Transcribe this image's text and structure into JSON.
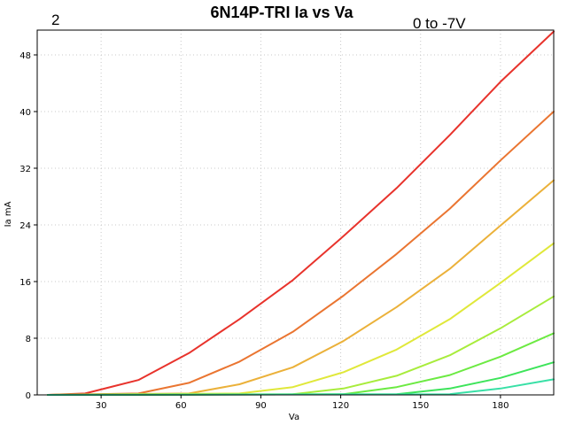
{
  "header": {
    "left_number": "2",
    "bias_range": "0 to -7V"
  },
  "chart_data": {
    "type": "line",
    "title": "6N14P-TRI Ia vs Va",
    "xlabel": "Va",
    "ylabel": "Ia mA",
    "xlim": [
      6,
      200
    ],
    "ylim": [
      0,
      51.5
    ],
    "xticks": [
      30,
      60,
      90,
      120,
      150,
      180
    ],
    "yticks": [
      0,
      8,
      16,
      24,
      32,
      40,
      48
    ],
    "grid": true,
    "legend": "none",
    "series": [
      {
        "color": "#e8332c",
        "x": [
          10,
          24,
          44,
          63,
          82,
          102,
          121,
          141,
          161,
          180,
          200
        ],
        "y": [
          0,
          0.2,
          2.1,
          5.9,
          10.7,
          16.2,
          22.4,
          29.2,
          36.7,
          44.2,
          51.3
        ]
      },
      {
        "color": "#ea7531",
        "x": [
          10,
          44,
          63,
          82,
          102,
          121,
          141,
          161,
          180,
          200
        ],
        "y": [
          0,
          0.2,
          1.7,
          4.7,
          8.9,
          14.0,
          19.9,
          26.3,
          33.1,
          40.0
        ]
      },
      {
        "color": "#ebb13a",
        "x": [
          10,
          63,
          82,
          102,
          121,
          141,
          161,
          180,
          200
        ],
        "y": [
          0,
          0.2,
          1.5,
          3.9,
          7.6,
          12.4,
          17.8,
          23.9,
          30.3
        ]
      },
      {
        "color": "#e0e83a",
        "x": [
          10,
          82,
          102,
          121,
          141,
          161,
          180,
          200
        ],
        "y": [
          0,
          0.2,
          1.1,
          3.2,
          6.4,
          10.7,
          15.8,
          21.4
        ]
      },
      {
        "color": "#a8ec3c",
        "x": [
          10,
          102,
          121,
          141,
          161,
          180,
          200
        ],
        "y": [
          0,
          0.1,
          0.9,
          2.7,
          5.6,
          9.4,
          13.9
        ]
      },
      {
        "color": "#6cea42",
        "x": [
          10,
          121,
          141,
          161,
          180,
          200
        ],
        "y": [
          0,
          0.1,
          1.1,
          2.8,
          5.4,
          8.7
        ]
      },
      {
        "color": "#3de45a",
        "x": [
          10,
          141,
          161,
          180,
          200
        ],
        "y": [
          0,
          0.1,
          0.9,
          2.4,
          4.6
        ]
      },
      {
        "color": "#38e0a6",
        "x": [
          10,
          161,
          180,
          200
        ],
        "y": [
          0,
          0.1,
          0.9,
          2.2
        ]
      }
    ]
  }
}
